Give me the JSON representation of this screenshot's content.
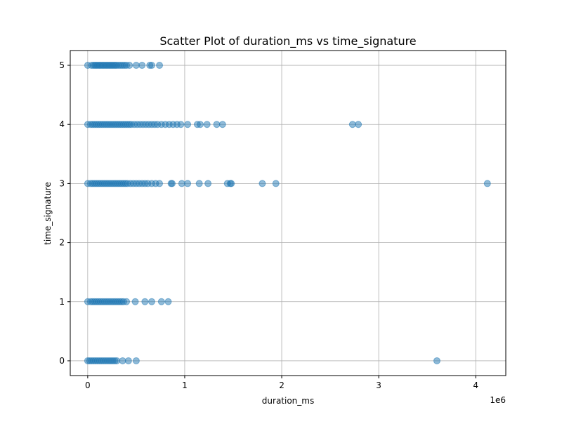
{
  "chart_data": {
    "type": "scatter",
    "title": "Scatter Plot of duration_ms vs time_signature",
    "xlabel": "duration_ms",
    "ylabel": "time_signature",
    "x_offset_label": "1e6",
    "xlim": [
      -180000,
      4310000
    ],
    "ylim": [
      -0.25,
      5.25
    ],
    "x_ticks": [
      0,
      1000000,
      2000000,
      3000000,
      4000000
    ],
    "x_tick_labels": [
      "0",
      "1",
      "2",
      "3",
      "4"
    ],
    "y_ticks": [
      0,
      1,
      2,
      3,
      4,
      5
    ],
    "y_tick_labels": [
      "0",
      "1",
      "2",
      "3",
      "4",
      "5"
    ],
    "grid": true,
    "point_color": "#1f77b4",
    "point_alpha": 0.5,
    "series": [
      {
        "points": [
          [
            0,
            5
          ],
          [
            40000,
            5
          ],
          [
            60000,
            5
          ],
          [
            75000,
            5
          ],
          [
            90000,
            5
          ],
          [
            105000,
            5
          ],
          [
            120000,
            5
          ],
          [
            135000,
            5
          ],
          [
            150000,
            5
          ],
          [
            165000,
            5
          ],
          [
            180000,
            5
          ],
          [
            195000,
            5
          ],
          [
            210000,
            5
          ],
          [
            225000,
            5
          ],
          [
            240000,
            5
          ],
          [
            255000,
            5
          ],
          [
            270000,
            5
          ],
          [
            285000,
            5
          ],
          [
            300000,
            5
          ],
          [
            320000,
            5
          ],
          [
            340000,
            5
          ],
          [
            360000,
            5
          ],
          [
            380000,
            5
          ],
          [
            400000,
            5
          ],
          [
            430000,
            5
          ],
          [
            500000,
            5
          ],
          [
            560000,
            5
          ],
          [
            640000,
            5
          ],
          [
            660000,
            5
          ],
          [
            740000,
            5
          ],
          [
            0,
            4
          ],
          [
            30000,
            4
          ],
          [
            50000,
            4
          ],
          [
            70000,
            4
          ],
          [
            90000,
            4
          ],
          [
            110000,
            4
          ],
          [
            130000,
            4
          ],
          [
            150000,
            4
          ],
          [
            170000,
            4
          ],
          [
            190000,
            4
          ],
          [
            210000,
            4
          ],
          [
            230000,
            4
          ],
          [
            250000,
            4
          ],
          [
            270000,
            4
          ],
          [
            290000,
            4
          ],
          [
            310000,
            4
          ],
          [
            330000,
            4
          ],
          [
            350000,
            4
          ],
          [
            370000,
            4
          ],
          [
            390000,
            4
          ],
          [
            410000,
            4
          ],
          [
            430000,
            4
          ],
          [
            450000,
            4
          ],
          [
            480000,
            4
          ],
          [
            510000,
            4
          ],
          [
            540000,
            4
          ],
          [
            570000,
            4
          ],
          [
            600000,
            4
          ],
          [
            630000,
            4
          ],
          [
            660000,
            4
          ],
          [
            690000,
            4
          ],
          [
            720000,
            4
          ],
          [
            760000,
            4
          ],
          [
            800000,
            4
          ],
          [
            840000,
            4
          ],
          [
            880000,
            4
          ],
          [
            920000,
            4
          ],
          [
            960000,
            4
          ],
          [
            1030000,
            4
          ],
          [
            1130000,
            4
          ],
          [
            1160000,
            4
          ],
          [
            1230000,
            4
          ],
          [
            1330000,
            4
          ],
          [
            1390000,
            4
          ],
          [
            2730000,
            4
          ],
          [
            2790000,
            4
          ],
          [
            0,
            3
          ],
          [
            30000,
            3
          ],
          [
            50000,
            3
          ],
          [
            70000,
            3
          ],
          [
            90000,
            3
          ],
          [
            110000,
            3
          ],
          [
            130000,
            3
          ],
          [
            150000,
            3
          ],
          [
            170000,
            3
          ],
          [
            190000,
            3
          ],
          [
            210000,
            3
          ],
          [
            230000,
            3
          ],
          [
            250000,
            3
          ],
          [
            270000,
            3
          ],
          [
            290000,
            3
          ],
          [
            310000,
            3
          ],
          [
            330000,
            3
          ],
          [
            350000,
            3
          ],
          [
            370000,
            3
          ],
          [
            390000,
            3
          ],
          [
            410000,
            3
          ],
          [
            440000,
            3
          ],
          [
            470000,
            3
          ],
          [
            500000,
            3
          ],
          [
            530000,
            3
          ],
          [
            560000,
            3
          ],
          [
            590000,
            3
          ],
          [
            620000,
            3
          ],
          [
            660000,
            3
          ],
          [
            700000,
            3
          ],
          [
            740000,
            3
          ],
          [
            860000,
            3
          ],
          [
            870000,
            3
          ],
          [
            970000,
            3
          ],
          [
            1030000,
            3
          ],
          [
            1150000,
            3
          ],
          [
            1240000,
            3
          ],
          [
            1440000,
            3
          ],
          [
            1470000,
            3
          ],
          [
            1480000,
            3
          ],
          [
            1800000,
            3
          ],
          [
            1940000,
            3
          ],
          [
            4120000,
            3
          ],
          [
            0,
            1
          ],
          [
            30000,
            1
          ],
          [
            50000,
            1
          ],
          [
            70000,
            1
          ],
          [
            90000,
            1
          ],
          [
            110000,
            1
          ],
          [
            130000,
            1
          ],
          [
            150000,
            1
          ],
          [
            170000,
            1
          ],
          [
            190000,
            1
          ],
          [
            210000,
            1
          ],
          [
            230000,
            1
          ],
          [
            250000,
            1
          ],
          [
            270000,
            1
          ],
          [
            290000,
            1
          ],
          [
            310000,
            1
          ],
          [
            330000,
            1
          ],
          [
            350000,
            1
          ],
          [
            370000,
            1
          ],
          [
            400000,
            1
          ],
          [
            490000,
            1
          ],
          [
            590000,
            1
          ],
          [
            660000,
            1
          ],
          [
            760000,
            1
          ],
          [
            830000,
            1
          ],
          [
            0,
            0
          ],
          [
            20000,
            0
          ],
          [
            40000,
            0
          ],
          [
            60000,
            0
          ],
          [
            80000,
            0
          ],
          [
            100000,
            0
          ],
          [
            120000,
            0
          ],
          [
            140000,
            0
          ],
          [
            160000,
            0
          ],
          [
            180000,
            0
          ],
          [
            200000,
            0
          ],
          [
            220000,
            0
          ],
          [
            240000,
            0
          ],
          [
            260000,
            0
          ],
          [
            280000,
            0
          ],
          [
            300000,
            0
          ],
          [
            360000,
            0
          ],
          [
            420000,
            0
          ],
          [
            500000,
            0
          ],
          [
            3600000,
            0
          ]
        ]
      }
    ]
  }
}
